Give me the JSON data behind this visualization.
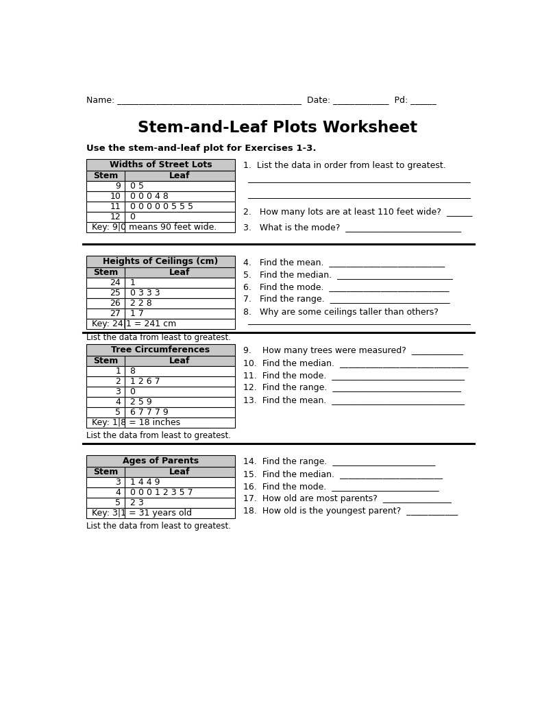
{
  "title": "Stem-and-Leaf Plots Worksheet",
  "section1_header": "Use the stem-and-leaf plot for Exercises 1-3.",
  "table1": {
    "title": "Widths of Street Lots",
    "headers": [
      "Stem",
      "Leaf"
    ],
    "rows": [
      [
        "9",
        "0 5"
      ],
      [
        "10",
        "0 0 0 4 8"
      ],
      [
        "11",
        "0 0 0 0 0 5 5 5"
      ],
      [
        "12",
        "0"
      ]
    ],
    "key": "Key: 9|0 means 90 feet wide."
  },
  "table2": {
    "title": "Heights of Ceilings (cm)",
    "headers": [
      "Stem",
      "Leaf"
    ],
    "rows": [
      [
        "24",
        "1"
      ],
      [
        "25",
        "0 3 3 3"
      ],
      [
        "26",
        "2 2 8"
      ],
      [
        "27",
        "1 7"
      ]
    ],
    "key": "Key: 24|1 = 241 cm",
    "sub_note": "List the data from least to greatest."
  },
  "table3": {
    "title": "Tree Circumferences",
    "headers": [
      "Stem",
      "Leaf"
    ],
    "rows": [
      [
        "1",
        "8"
      ],
      [
        "2",
        "1 2 6 7"
      ],
      [
        "3",
        "0"
      ],
      [
        "4",
        "2 5 9"
      ],
      [
        "5",
        "6 7 7 7 9"
      ]
    ],
    "key": "Key: 1|8 = 18 inches",
    "sub_note": "List the data from least to greatest."
  },
  "table4": {
    "title": "Ages of Parents",
    "headers": [
      "Stem",
      "Leaf"
    ],
    "rows": [
      [
        "3",
        "1 4 4 9"
      ],
      [
        "4",
        "0 0 0 1 2 3 5 7"
      ],
      [
        "5",
        "2 3"
      ]
    ],
    "key": "Key: 3|1 = 31 years old",
    "sub_note": "List the data from least to greatest."
  },
  "bg_color": "#ffffff",
  "header_gray": "#c8c8c8",
  "row_white": "#ffffff",
  "divider_color": "#222222",
  "page_width": 7.91,
  "page_height": 10.24
}
